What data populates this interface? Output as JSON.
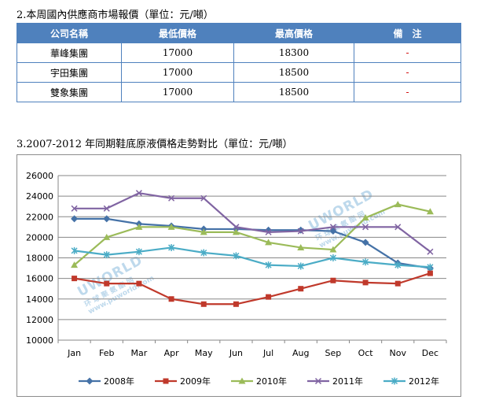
{
  "section2": {
    "title": "2.本周國內供應商市場報價（單位：元/噸）",
    "headers": [
      "公司名稱",
      "最低價格",
      "最高價格",
      "備　注"
    ],
    "rows": [
      [
        "華峰集團",
        "17000",
        "18300",
        "-"
      ],
      [
        "宇田集團",
        "17000",
        "18500",
        "-"
      ],
      [
        "雙象集團",
        "17000",
        "18500",
        "-"
      ]
    ]
  },
  "section3": {
    "title": "3.2007-2012 年同期鞋底原液價格走勢對比（單位：元/噸）"
  },
  "watermark": {
    "brand": "UWORLD",
    "cn": "环 球 聚 氨 酯 网",
    "url": "www.puworld.com"
  },
  "chart_data": {
    "type": "line",
    "categories": [
      "Jan",
      "Feb",
      "Mar",
      "Apr",
      "May",
      "Jun",
      "Jul",
      "Aug",
      "Sep",
      "Oct",
      "Nov",
      "Dec"
    ],
    "ylim": [
      10000,
      26000
    ],
    "yticks": [
      10000,
      12000,
      14000,
      16000,
      18000,
      20000,
      22000,
      24000,
      26000
    ],
    "grid": true,
    "legend_position": "bottom",
    "series": [
      {
        "name": "2008年",
        "color": "#4572a7",
        "marker": "diamond",
        "values": [
          21800,
          21800,
          21300,
          21100,
          20800,
          20800,
          20700,
          20700,
          20600,
          19500,
          17500,
          17000
        ]
      },
      {
        "name": "2009年",
        "color": "#c0392b",
        "marker": "square",
        "values": [
          16000,
          15500,
          15500,
          14000,
          13500,
          13500,
          14200,
          15000,
          15800,
          15600,
          15500,
          16500
        ]
      },
      {
        "name": "2010年",
        "color": "#9bbb59",
        "marker": "triangle",
        "values": [
          17300,
          20000,
          21000,
          21000,
          20500,
          20500,
          19500,
          19000,
          18800,
          21900,
          23200,
          22500
        ]
      },
      {
        "name": "2011年",
        "color": "#8064a2",
        "marker": "x",
        "values": [
          22800,
          22800,
          24300,
          23800,
          23800,
          21000,
          20500,
          20600,
          21000,
          21000,
          21000,
          18600
        ]
      },
      {
        "name": "2012年",
        "color": "#4bacc6",
        "marker": "star",
        "values": [
          18700,
          18300,
          18600,
          19000,
          18500,
          18200,
          17300,
          17200,
          18000,
          17600,
          17300,
          17100
        ]
      }
    ]
  }
}
